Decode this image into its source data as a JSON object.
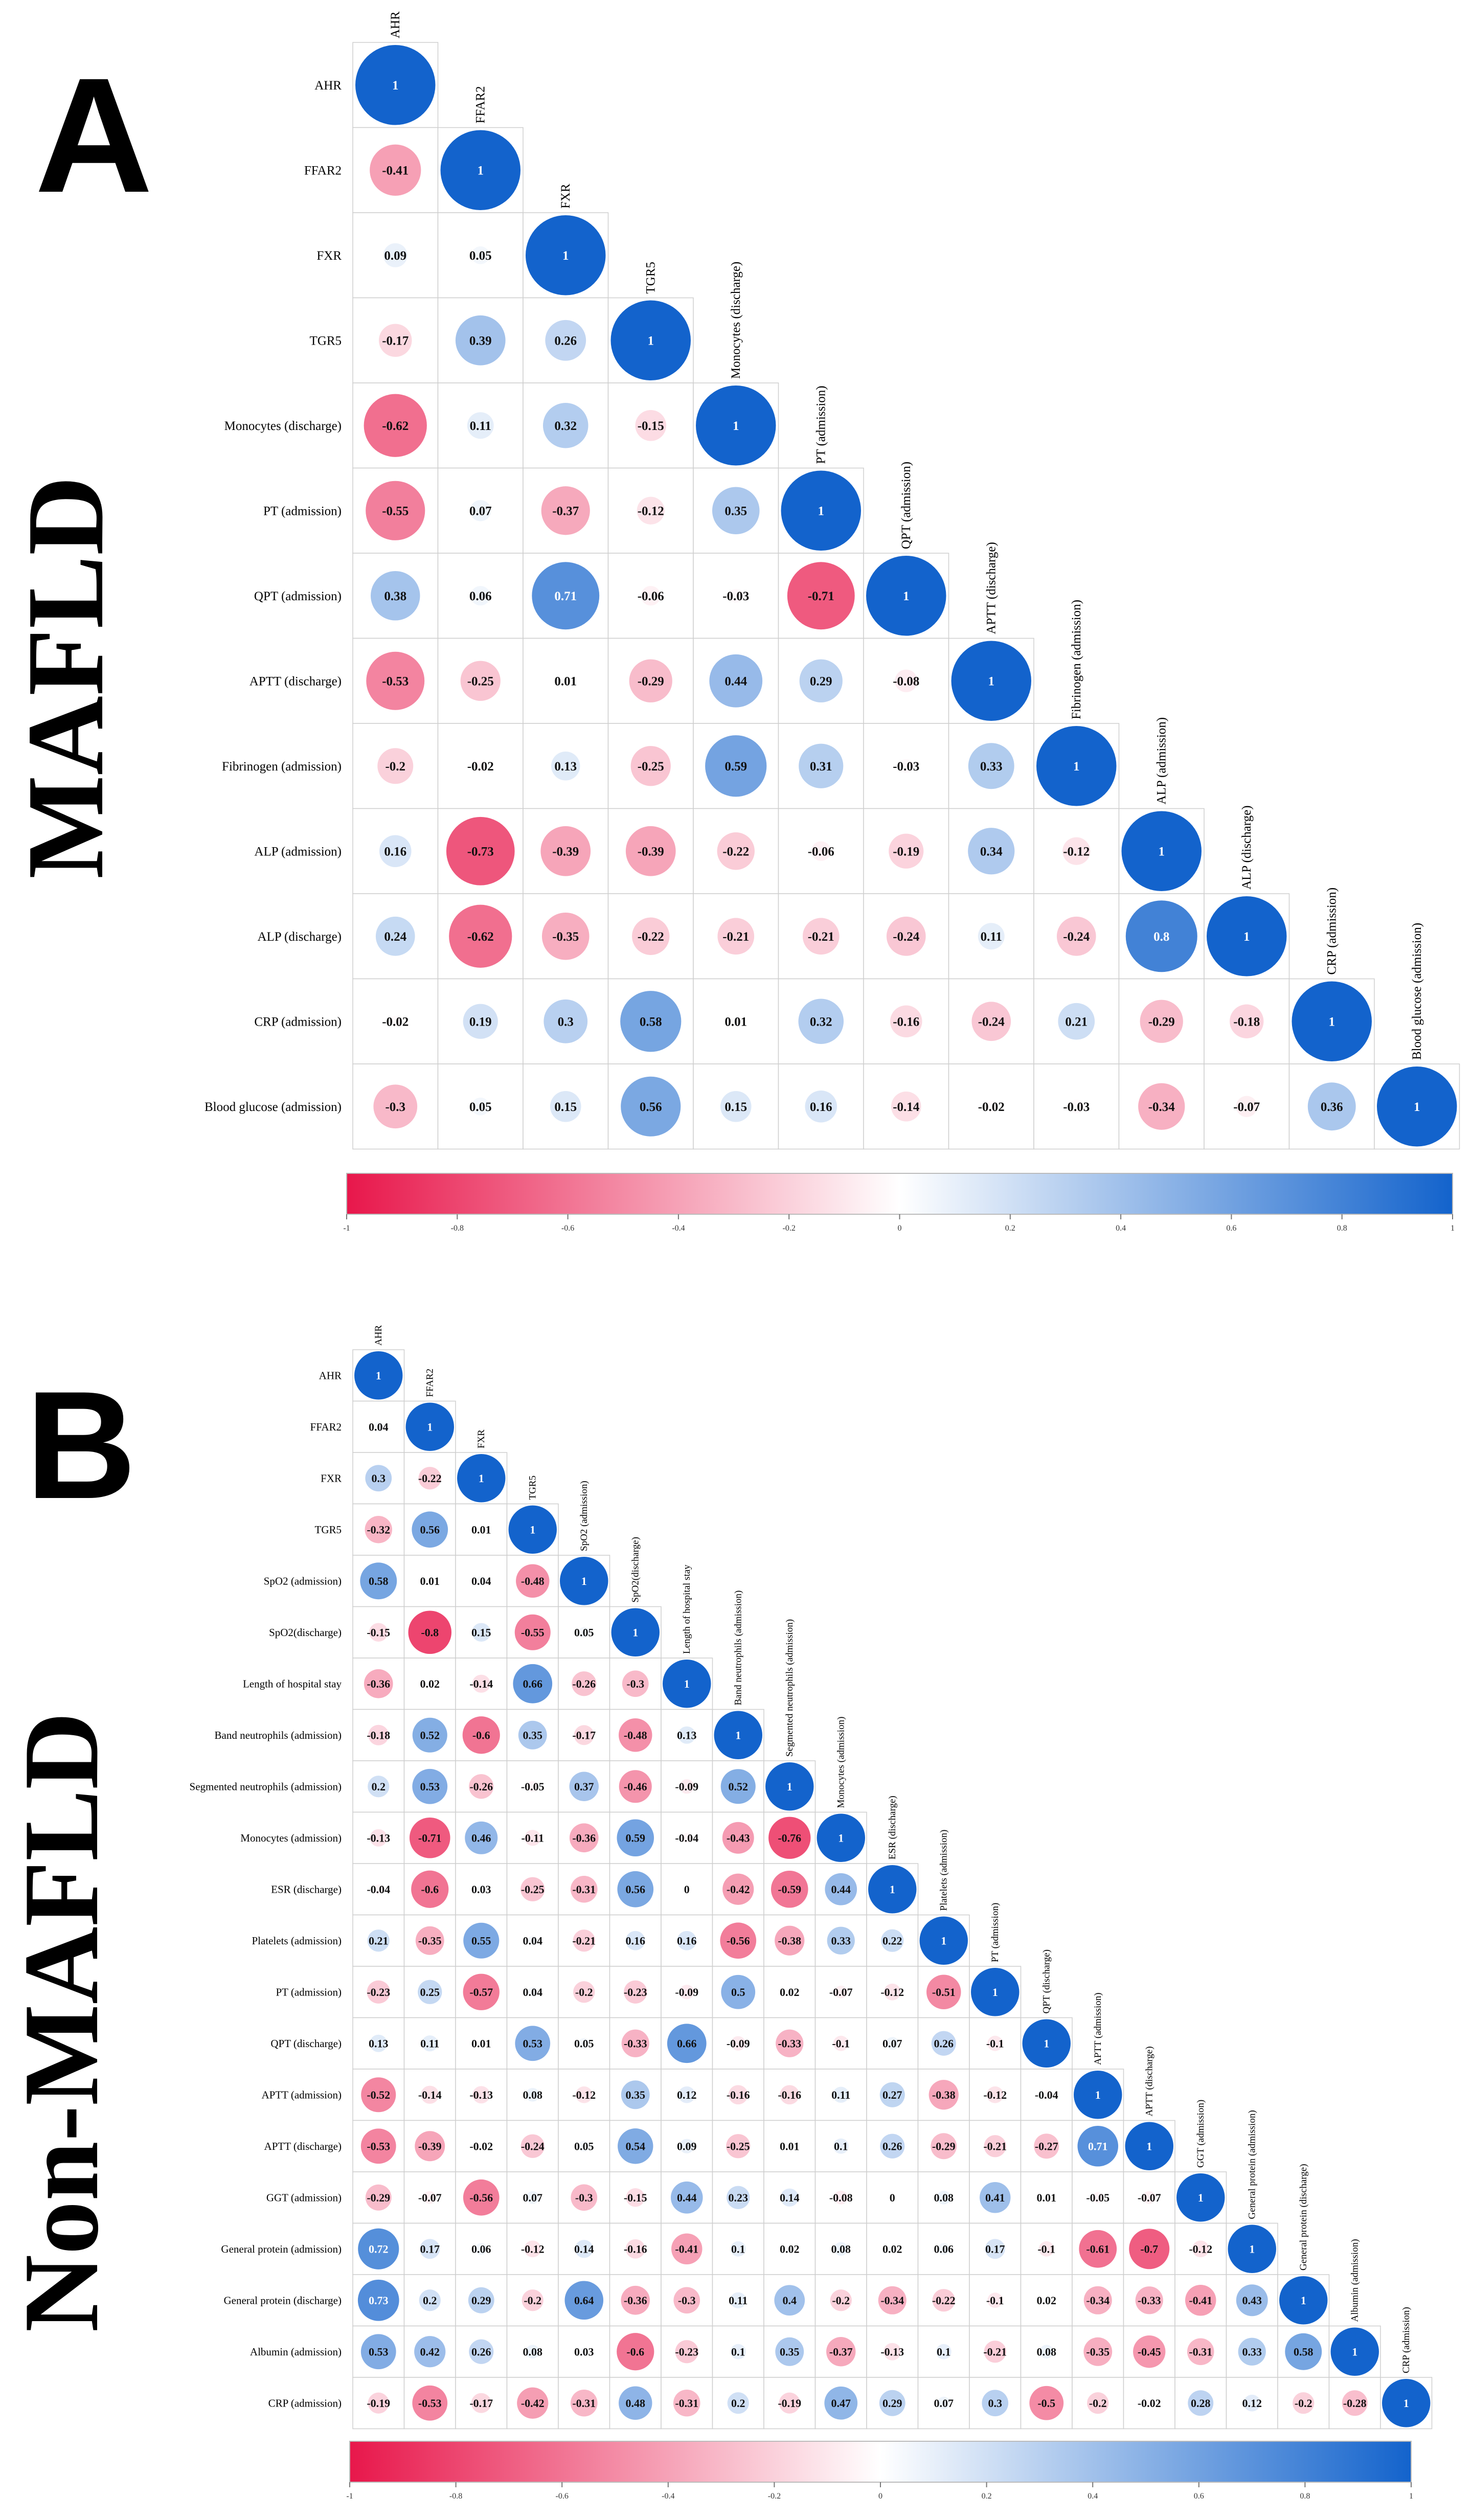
{
  "panels": [
    {
      "letter": "A",
      "group_label": "MAFLD",
      "chart_data": {
        "type": "heatmap",
        "subtype": "lower-triangle correlation matrix (circles)",
        "variables": [
          "AHR",
          "FFAR2",
          "FXR",
          "TGR5",
          "Monocytes (discharge)",
          "PT (admission)",
          "QPT (admission)",
          "APTT (discharge)",
          "Fibrinogen (admission)",
          "ALP (admission)",
          "ALP (discharge)",
          "CRP (admission)",
          "Blood glucose (admission)"
        ],
        "matrix": [
          [
            1
          ],
          [
            -0.41,
            1
          ],
          [
            0.09,
            0.05,
            1
          ],
          [
            -0.17,
            0.39,
            0.26,
            1
          ],
          [
            -0.62,
            0.11,
            0.32,
            -0.15,
            1
          ],
          [
            -0.55,
            0.07,
            -0.37,
            -0.12,
            0.35,
            1
          ],
          [
            0.38,
            0.06,
            0.71,
            -0.06,
            -0.03,
            -0.71,
            1
          ],
          [
            -0.53,
            -0.25,
            0.01,
            -0.29,
            0.44,
            0.29,
            -0.08,
            1
          ],
          [
            -0.2,
            -0.02,
            0.13,
            -0.25,
            0.59,
            0.31,
            -0.03,
            0.33,
            1
          ],
          [
            0.16,
            -0.73,
            -0.39,
            -0.39,
            -0.22,
            -0.06,
            -0.19,
            0.34,
            -0.12,
            1
          ],
          [
            0.24,
            -0.62,
            -0.35,
            -0.22,
            -0.21,
            -0.21,
            -0.24,
            0.11,
            -0.24,
            0.8,
            1
          ],
          [
            -0.02,
            0.19,
            0.3,
            0.58,
            0.01,
            0.32,
            -0.16,
            -0.24,
            0.21,
            -0.29,
            -0.18,
            1
          ],
          [
            -0.3,
            0.05,
            0.15,
            0.56,
            0.15,
            0.16,
            -0.14,
            -0.02,
            -0.03,
            -0.34,
            -0.07,
            0.36,
            1
          ]
        ],
        "colorbar": {
          "range": [
            -1,
            1
          ],
          "ticks": [
            "-1",
            "-0.8",
            "-0.6",
            "-0.4",
            "-0.2",
            "0",
            "0.2",
            "0.4",
            "0.6",
            "0.8",
            "1"
          ],
          "negative_color": "#E8174B",
          "neutral_color": "#FFFFFF",
          "positive_color": "#1363CC"
        }
      }
    },
    {
      "letter": "B",
      "group_label": "Non-MAFLD",
      "chart_data": {
        "type": "heatmap",
        "subtype": "lower-triangle correlation matrix (circles)",
        "variables": [
          "AHR",
          "FFAR2",
          "FXR",
          "TGR5",
          "SpO2 (admission)",
          "SpO2(discharge)",
          "Length of hospital stay",
          "Band neutrophils (admission)",
          "Segmented neutrophils (admission)",
          "Monocytes (admission)",
          "ESR (discharge)",
          "Platelets (admission)",
          "PT (admission)",
          "QPT (discharge)",
          "APTT (admission)",
          "APTT (discharge)",
          "GGT (admission)",
          "General protein (admission)",
          "General protein (discharge)",
          "Albumin (admission)",
          "CRP (admission)"
        ],
        "matrix": [
          [
            1
          ],
          [
            0.04,
            1
          ],
          [
            0.3,
            -0.22,
            1
          ],
          [
            -0.32,
            0.56,
            0.01,
            1
          ],
          [
            0.58,
            0.01,
            0.04,
            -0.48,
            1
          ],
          [
            -0.15,
            -0.8,
            0.15,
            -0.55,
            0.05,
            1
          ],
          [
            -0.36,
            0.02,
            -0.14,
            0.66,
            -0.26,
            -0.3,
            1
          ],
          [
            -0.18,
            0.52,
            -0.6,
            0.35,
            -0.17,
            -0.48,
            0.13,
            1
          ],
          [
            0.2,
            0.53,
            -0.26,
            -0.05,
            0.37,
            -0.46,
            -0.09,
            0.52,
            1
          ],
          [
            -0.13,
            -0.71,
            0.46,
            -0.11,
            -0.36,
            0.59,
            -0.04,
            -0.43,
            -0.76,
            1
          ],
          [
            -0.04,
            -0.6,
            0.03,
            -0.25,
            -0.31,
            0.56,
            0,
            -0.42,
            -0.59,
            0.44,
            1
          ],
          [
            0.21,
            -0.35,
            0.55,
            0.04,
            -0.21,
            0.16,
            0.16,
            -0.56,
            -0.38,
            0.33,
            0.22,
            1
          ],
          [
            -0.23,
            0.25,
            -0.57,
            0.04,
            -0.2,
            -0.23,
            -0.09,
            0.5,
            0.02,
            -0.07,
            -0.12,
            -0.51,
            1
          ],
          [
            0.13,
            0.11,
            0.01,
            0.53,
            0.05,
            -0.33,
            0.66,
            -0.09,
            -0.33,
            -0.1,
            0.07,
            0.26,
            -0.1,
            1
          ],
          [
            -0.52,
            -0.14,
            -0.13,
            0.08,
            -0.12,
            0.35,
            0.12,
            -0.16,
            -0.16,
            0.11,
            0.27,
            -0.38,
            -0.12,
            -0.04,
            1
          ],
          [
            -0.53,
            -0.39,
            -0.02,
            -0.24,
            0.05,
            0.54,
            0.09,
            -0.25,
            0.01,
            0.1,
            0.26,
            -0.29,
            -0.21,
            -0.27,
            0.71,
            1
          ],
          [
            -0.29,
            -0.07,
            -0.56,
            0.07,
            -0.3,
            -0.15,
            0.44,
            0.23,
            0.14,
            -0.08,
            0,
            0.08,
            0.41,
            0.01,
            -0.05,
            -0.07,
            1
          ],
          [
            0.72,
            0.17,
            0.06,
            -0.12,
            0.14,
            -0.16,
            -0.41,
            0.1,
            0.02,
            0.08,
            0.02,
            0.06,
            0.17,
            -0.1,
            -0.61,
            -0.7,
            -0.12,
            1
          ],
          [
            0.73,
            0.2,
            0.29,
            -0.2,
            0.64,
            -0.36,
            -0.3,
            0.11,
            0.4,
            -0.2,
            -0.34,
            -0.22,
            -0.1,
            0.02,
            -0.34,
            -0.33,
            -0.41,
            0.43,
            1
          ],
          [
            0.53,
            0.42,
            0.26,
            0.08,
            0.03,
            -0.6,
            -0.23,
            0.1,
            0.35,
            -0.37,
            -0.13,
            0.1,
            -0.21,
            0.08,
            -0.35,
            -0.45,
            -0.31,
            0.33,
            0.58,
            1
          ],
          [
            -0.19,
            -0.53,
            -0.17,
            -0.42,
            -0.31,
            0.48,
            -0.31,
            0.2,
            -0.19,
            0.47,
            0.29,
            0.07,
            0.3,
            -0.5,
            -0.2,
            -0.02,
            0.28,
            0.12,
            -0.2,
            -0.28,
            1
          ]
        ],
        "colorbar": {
          "range": [
            -1,
            1
          ],
          "ticks": [
            "-1",
            "-0.8",
            "-0.6",
            "-0.4",
            "-0.2",
            "0",
            "0.2",
            "0.4",
            "0.6",
            "0.8",
            "1"
          ],
          "negative_color": "#E8174B",
          "neutral_color": "#FFFFFF",
          "positive_color": "#1363CC"
        }
      }
    }
  ]
}
